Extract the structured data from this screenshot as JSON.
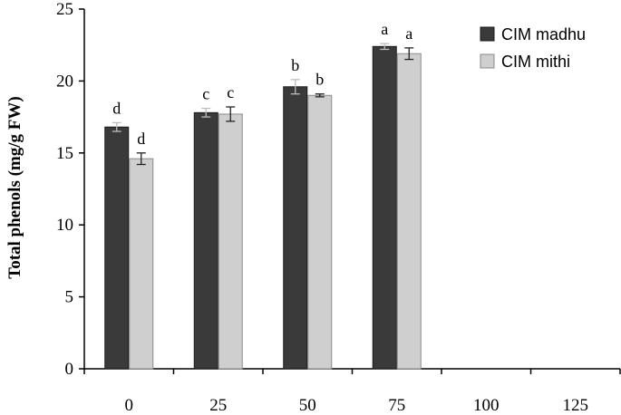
{
  "chart_data": {
    "type": "bar",
    "title": "",
    "xlabel": "",
    "ylabel": "Total phenols (mg/g FW)",
    "categories": [
      "0",
      "25",
      "50",
      "75",
      "100",
      "125"
    ],
    "ylim": [
      0,
      25
    ],
    "yticks": [
      "0",
      "5",
      "10",
      "15",
      "20",
      "25"
    ],
    "grid": false,
    "legend_position": "top-right",
    "series": [
      {
        "name": "CIM madhu",
        "color": "#3a3a3a",
        "values": [
          16.8,
          17.8,
          19.6,
          22.4,
          null,
          null
        ],
        "errors": [
          0.3,
          0.3,
          0.5,
          0.2,
          null,
          null
        ],
        "letters": [
          "d",
          "c",
          "b",
          "a",
          "",
          ""
        ]
      },
      {
        "name": "CIM mithi",
        "color": "#cfcfcf",
        "values": [
          14.6,
          17.7,
          19.0,
          21.9,
          null,
          null
        ],
        "errors": [
          0.4,
          0.5,
          0.1,
          0.4,
          null,
          null
        ],
        "letters": [
          "d",
          "c",
          "b",
          "a",
          "",
          ""
        ]
      }
    ]
  }
}
